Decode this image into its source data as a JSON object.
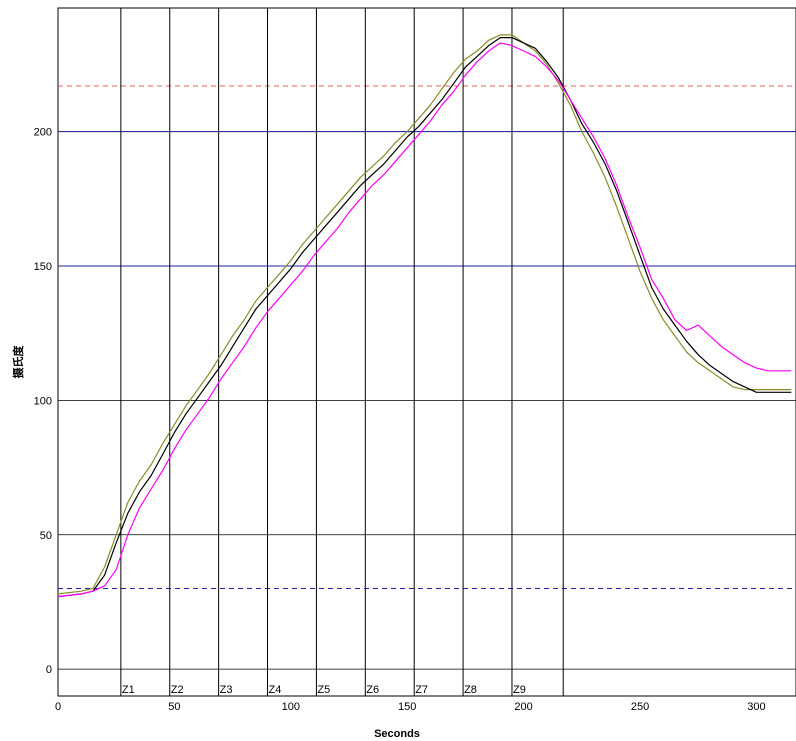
{
  "chart_data": {
    "type": "line",
    "xlabel": "Seconds",
    "ylabel": "摄氏度",
    "xlim": [
      0,
      317
    ],
    "ylim": [
      -10,
      246
    ],
    "x_ticks": [
      0,
      50,
      100,
      150,
      200,
      250,
      300
    ],
    "y_ticks": [
      0,
      50,
      100,
      150,
      200
    ],
    "zones": [
      {
        "label": "Z1",
        "x": 27
      },
      {
        "label": "Z2",
        "x": 48
      },
      {
        "label": "Z3",
        "x": 69
      },
      {
        "label": "Z4",
        "x": 90
      },
      {
        "label": "Z5",
        "x": 111
      },
      {
        "label": "Z6",
        "x": 132
      },
      {
        "label": "Z7",
        "x": 153
      },
      {
        "label": "Z8",
        "x": 174
      },
      {
        "label": "Z9",
        "x": 195
      },
      {
        "label": "",
        "x": 217
      }
    ],
    "reference_lines": [
      {
        "y": 217,
        "style": "dashed",
        "color": "#e06060"
      },
      {
        "y": 200,
        "style": "solid",
        "color": "#2020a0"
      },
      {
        "y": 150,
        "style": "solid",
        "color": "#2020a0"
      },
      {
        "y": 30,
        "style": "dashed",
        "color": "#2020a0"
      }
    ],
    "series": [
      {
        "color": "#8b8b2a",
        "x": [
          0,
          10,
          15,
          20,
          25,
          30,
          35,
          40,
          45,
          50,
          55,
          60,
          65,
          70,
          75,
          80,
          85,
          90,
          95,
          100,
          105,
          110,
          115,
          120,
          125,
          130,
          135,
          140,
          145,
          150,
          155,
          160,
          165,
          170,
          175,
          180,
          185,
          190,
          195,
          200,
          205,
          210,
          215,
          220,
          225,
          230,
          235,
          240,
          245,
          250,
          255,
          260,
          265,
          270,
          275,
          280,
          285,
          290,
          295,
          300,
          305,
          310,
          315
        ],
        "values": [
          28,
          29,
          30,
          38,
          50,
          62,
          70,
          76,
          84,
          91,
          98,
          104,
          110,
          117,
          124,
          130,
          137,
          142,
          147,
          152,
          158,
          163,
          168,
          173,
          178,
          183,
          187,
          191,
          196,
          200,
          205,
          210,
          216,
          222,
          227,
          230,
          234,
          236,
          236,
          233,
          230,
          225,
          218,
          210,
          200,
          192,
          183,
          172,
          160,
          148,
          138,
          130,
          124,
          118,
          114,
          111,
          108,
          105,
          104,
          104,
          104,
          104,
          104
        ]
      },
      {
        "color": "#000000",
        "x": [
          0,
          10,
          15,
          20,
          25,
          30,
          35,
          40,
          45,
          50,
          55,
          60,
          65,
          70,
          75,
          80,
          85,
          90,
          95,
          100,
          105,
          110,
          115,
          120,
          125,
          130,
          135,
          140,
          145,
          150,
          155,
          160,
          165,
          170,
          175,
          180,
          185,
          190,
          195,
          200,
          205,
          210,
          215,
          220,
          225,
          230,
          235,
          240,
          245,
          250,
          255,
          260,
          265,
          270,
          275,
          280,
          285,
          290,
          295,
          300,
          305,
          310,
          315
        ],
        "values": [
          27,
          28,
          29,
          35,
          47,
          58,
          66,
          72,
          80,
          88,
          95,
          101,
          107,
          113,
          120,
          127,
          134,
          139,
          144,
          149,
          155,
          160,
          165,
          170,
          175,
          180,
          184,
          188,
          193,
          198,
          202,
          207,
          212,
          218,
          224,
          228,
          232,
          235,
          235,
          233,
          231,
          226,
          220,
          212,
          203,
          196,
          188,
          178,
          166,
          154,
          142,
          134,
          128,
          122,
          117,
          113,
          110,
          107,
          105,
          103,
          103,
          103,
          103
        ]
      },
      {
        "color": "#ff00ff",
        "x": [
          0,
          10,
          15,
          20,
          25,
          30,
          35,
          40,
          45,
          50,
          55,
          60,
          65,
          70,
          75,
          80,
          85,
          90,
          95,
          100,
          105,
          110,
          115,
          120,
          125,
          130,
          135,
          140,
          145,
          150,
          155,
          160,
          165,
          170,
          175,
          180,
          185,
          190,
          195,
          200,
          205,
          210,
          215,
          220,
          225,
          230,
          235,
          240,
          245,
          250,
          255,
          260,
          265,
          270,
          275,
          280,
          285,
          290,
          295,
          300,
          305,
          310,
          315
        ],
        "values": [
          27,
          28,
          29,
          31,
          37,
          50,
          60,
          67,
          74,
          82,
          89,
          95,
          101,
          108,
          114,
          120,
          127,
          133,
          138,
          143,
          148,
          154,
          159,
          164,
          170,
          175,
          180,
          184,
          189,
          194,
          199,
          204,
          210,
          215,
          221,
          226,
          230,
          233,
          232,
          230,
          228,
          224,
          219,
          212,
          205,
          198,
          190,
          180,
          168,
          157,
          145,
          138,
          130,
          126,
          128,
          124,
          120,
          117,
          114,
          112,
          111,
          111,
          111
        ]
      }
    ]
  }
}
